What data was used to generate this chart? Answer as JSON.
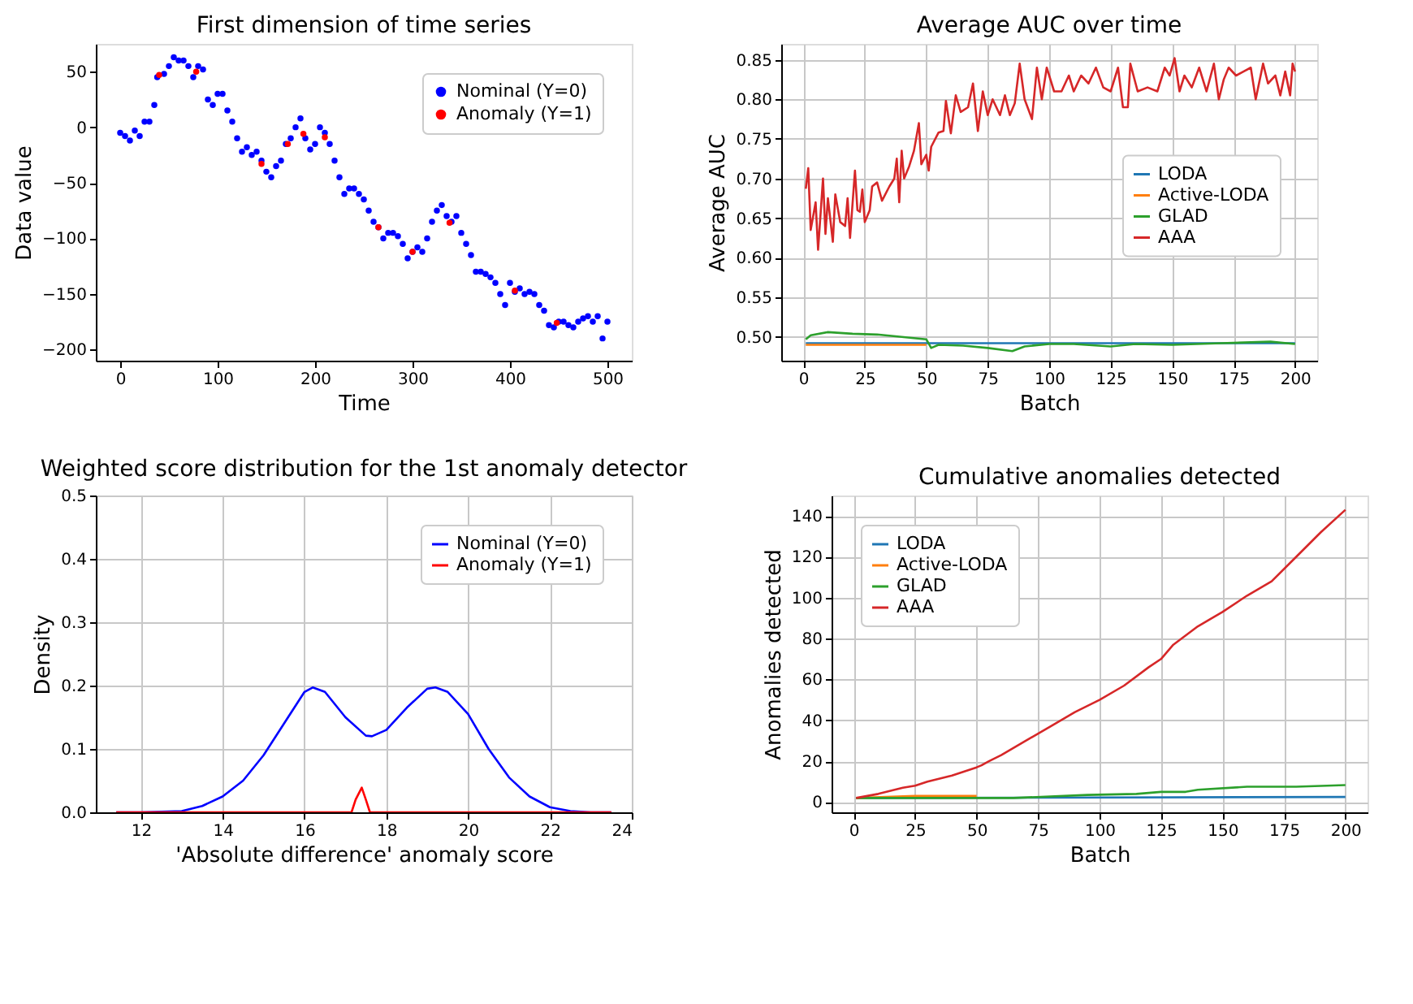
{
  "chart_data": [
    {
      "type": "scatter",
      "title": "First dimension of time series",
      "xlabel": "Time",
      "ylabel": "Data value",
      "xlim": [
        -25,
        525
      ],
      "ylim": [
        -210,
        75
      ],
      "xticks": [
        0,
        100,
        200,
        300,
        400,
        500
      ],
      "yticks": [
        -200,
        -150,
        -100,
        -50,
        0,
        50
      ],
      "grid": false,
      "legend": "top right",
      "marker": "circle",
      "series": [
        {
          "name": "Nominal (Y=0)",
          "color": "#0000ff",
          "x": [
            0,
            5,
            10,
            15,
            20,
            25,
            30,
            35,
            38,
            45,
            50,
            55,
            60,
            65,
            70,
            75,
            80,
            85,
            90,
            95,
            100,
            105,
            110,
            115,
            120,
            125,
            130,
            135,
            140,
            145,
            150,
            155,
            160,
            165,
            170,
            175,
            180,
            185,
            190,
            195,
            200,
            205,
            210,
            215,
            220,
            225,
            230,
            235,
            240,
            245,
            250,
            255,
            260,
            265,
            270,
            275,
            280,
            285,
            290,
            295,
            300,
            305,
            310,
            315,
            320,
            325,
            330,
            335,
            340,
            345,
            350,
            355,
            360,
            365,
            370,
            375,
            380,
            385,
            390,
            395,
            400,
            405,
            410,
            415,
            420,
            425,
            430,
            435,
            440,
            445,
            450,
            455,
            460,
            465,
            470,
            475,
            480,
            485,
            490,
            495,
            500
          ],
          "values": [
            -5,
            -8,
            -12,
            -3,
            -8,
            5,
            5,
            20,
            45,
            48,
            55,
            63,
            60,
            60,
            55,
            45,
            55,
            52,
            25,
            20,
            30,
            30,
            15,
            5,
            -10,
            -22,
            -18,
            -25,
            -22,
            -30,
            -40,
            -45,
            -35,
            -30,
            -15,
            -10,
            0,
            8,
            -10,
            -20,
            -15,
            0,
            -5,
            -15,
            -30,
            -45,
            -60,
            -55,
            -55,
            -60,
            -65,
            -75,
            -85,
            -90,
            -100,
            -95,
            -95,
            -98,
            -105,
            -118,
            -112,
            -108,
            -112,
            -100,
            -85,
            -75,
            -70,
            -80,
            -85,
            -80,
            -95,
            -105,
            -115,
            -130,
            -130,
            -132,
            -135,
            -140,
            -150,
            -160,
            -140,
            -148,
            -145,
            -150,
            -148,
            -150,
            -160,
            -165,
            -178,
            -180,
            -175,
            -175,
            -178,
            -180,
            -175,
            -172,
            -170,
            -175,
            -170,
            -190,
            -175
          ]
        },
        {
          "name": "Anomaly (Y=1)",
          "color": "#ff0000",
          "x": [
            40,
            78,
            145,
            172,
            188,
            210,
            265,
            300,
            338,
            405,
            448
          ],
          "values": [
            47,
            50,
            -33,
            -15,
            -6,
            -9,
            -90,
            -112,
            -86,
            -147,
            -176
          ]
        }
      ]
    },
    {
      "type": "line",
      "title": "Average AUC over time",
      "xlabel": "Batch",
      "ylabel": "Average AUC",
      "xlim": [
        -9,
        209
      ],
      "ylim": [
        0.47,
        0.87
      ],
      "xticks": [
        0,
        25,
        50,
        75,
        100,
        125,
        150,
        175,
        200
      ],
      "yticks": [
        {
          "value": 0.5,
          "label": "0.50"
        },
        {
          "value": 0.55,
          "label": "0.55"
        },
        {
          "value": 0.6,
          "label": "0.60"
        },
        {
          "value": 0.65,
          "label": "0.65"
        },
        {
          "value": 0.7,
          "label": "0.70"
        },
        {
          "value": 0.75,
          "label": "0.75"
        },
        {
          "value": 0.8,
          "label": "0.80"
        },
        {
          "value": 0.85,
          "label": "0.85"
        }
      ],
      "grid": true,
      "legend": "right",
      "line_style": "solid",
      "series": [
        {
          "name": "LODA",
          "color": "#1f77b4",
          "x": [
            1,
            200
          ],
          "values": [
            0.492,
            0.492
          ]
        },
        {
          "name": "Active-LODA",
          "color": "#ff7f0e",
          "x": [
            1,
            50
          ],
          "values": [
            0.49,
            0.49
          ]
        },
        {
          "name": "GLAD",
          "color": "#2ca02c",
          "x": [
            1,
            3,
            10,
            20,
            30,
            40,
            50,
            52,
            55,
            65,
            75,
            85,
            90,
            100,
            110,
            125,
            135,
            150,
            170,
            190,
            200
          ],
          "values": [
            0.497,
            0.502,
            0.506,
            0.504,
            0.503,
            0.5,
            0.497,
            0.486,
            0.49,
            0.489,
            0.486,
            0.482,
            0.488,
            0.491,
            0.491,
            0.488,
            0.491,
            0.49,
            0.492,
            0.494,
            0.491
          ]
        },
        {
          "name": "AAA",
          "color": "#d62728",
          "x": [
            1,
            2,
            3,
            5,
            6,
            8,
            9,
            10,
            12,
            13,
            15,
            17,
            18,
            19,
            21,
            22,
            23,
            24,
            25,
            27,
            28,
            30,
            32,
            35,
            37,
            38,
            39,
            40,
            41,
            43,
            45,
            47,
            48,
            50,
            51,
            52,
            55,
            57,
            58,
            60,
            62,
            64,
            67,
            69,
            71,
            73,
            75,
            77,
            80,
            82,
            84,
            86,
            88,
            90,
            93,
            95,
            97,
            99,
            102,
            105,
            108,
            110,
            113,
            116,
            119,
            122,
            125,
            128,
            130,
            132,
            133,
            136,
            140,
            144,
            147,
            149,
            151,
            153,
            155,
            158,
            161,
            164,
            167,
            169,
            171,
            173,
            176,
            179,
            182,
            184,
            187,
            189,
            192,
            194,
            196,
            198,
            199,
            200
          ],
          "values": [
            0.687,
            0.713,
            0.635,
            0.67,
            0.61,
            0.7,
            0.63,
            0.675,
            0.62,
            0.68,
            0.645,
            0.64,
            0.675,
            0.625,
            0.71,
            0.66,
            0.658,
            0.686,
            0.645,
            0.66,
            0.69,
            0.695,
            0.672,
            0.69,
            0.7,
            0.725,
            0.67,
            0.735,
            0.7,
            0.715,
            0.735,
            0.77,
            0.718,
            0.73,
            0.71,
            0.74,
            0.758,
            0.76,
            0.798,
            0.757,
            0.805,
            0.784,
            0.79,
            0.82,
            0.76,
            0.81,
            0.78,
            0.8,
            0.78,
            0.805,
            0.78,
            0.795,
            0.845,
            0.8,
            0.775,
            0.84,
            0.8,
            0.84,
            0.81,
            0.81,
            0.83,
            0.81,
            0.83,
            0.82,
            0.84,
            0.815,
            0.81,
            0.84,
            0.79,
            0.79,
            0.845,
            0.81,
            0.815,
            0.81,
            0.84,
            0.83,
            0.852,
            0.81,
            0.83,
            0.815,
            0.84,
            0.81,
            0.845,
            0.8,
            0.825,
            0.84,
            0.83,
            0.835,
            0.84,
            0.8,
            0.845,
            0.82,
            0.83,
            0.805,
            0.835,
            0.805,
            0.845,
            0.835
          ]
        }
      ]
    },
    {
      "type": "line",
      "title": "Weighted score distribution for the 1st anomaly detector",
      "xlabel": "'Absolute difference' anomaly score",
      "ylabel": "Density",
      "xlim": [
        10.9,
        24
      ],
      "ylim": [
        0,
        0.5
      ],
      "xticks": [
        12,
        14,
        16,
        18,
        20,
        22,
        24
      ],
      "yticks": [
        {
          "value": 0,
          "label": "0.0"
        },
        0.1,
        0.2,
        0.3,
        0.4,
        0.5
      ],
      "grid": true,
      "legend": "top right",
      "line_style": "solid",
      "series": [
        {
          "name": "Nominal (Y=0)",
          "color": "#0000ff",
          "x": [
            11.4,
            12,
            13,
            13.5,
            14,
            14.5,
            15,
            15.5,
            16,
            16.2,
            16.5,
            17,
            17.5,
            17.65,
            18,
            18.5,
            19,
            19.2,
            19.5,
            20,
            20.5,
            21,
            21.5,
            22,
            22.5,
            23,
            23.5
          ],
          "values": [
            0,
            0,
            0.002,
            0.01,
            0.025,
            0.05,
            0.09,
            0.14,
            0.19,
            0.197,
            0.19,
            0.15,
            0.121,
            0.12,
            0.13,
            0.165,
            0.195,
            0.197,
            0.19,
            0.155,
            0.1,
            0.055,
            0.025,
            0.008,
            0.002,
            0,
            0
          ]
        },
        {
          "name": "Anomaly (Y=1)",
          "color": "#ff0000",
          "x": [
            11.4,
            17.15,
            17.25,
            17.4,
            17.5,
            17.6,
            23.5
          ],
          "values": [
            0,
            0,
            0.02,
            0.039,
            0.02,
            0,
            0
          ]
        }
      ]
    },
    {
      "type": "line",
      "title": "Cumulative anomalies detected",
      "xlabel": "Batch",
      "ylabel": "Anomalies detected",
      "xlim": [
        -9,
        209
      ],
      "ylim": [
        -5,
        150
      ],
      "xticks": [
        0,
        25,
        50,
        75,
        100,
        125,
        150,
        175,
        200
      ],
      "yticks": [
        0,
        20,
        40,
        60,
        80,
        100,
        120,
        140
      ],
      "grid": true,
      "legend": "top left",
      "line_style": "solid",
      "series": [
        {
          "name": "LODA",
          "color": "#1f77b4",
          "x": [
            1,
            200
          ],
          "values": [
            2,
            2.5
          ]
        },
        {
          "name": "Active-LODA",
          "color": "#ff7f0e",
          "x": [
            1,
            25,
            50
          ],
          "values": [
            2,
            3,
            3
          ]
        },
        {
          "name": "GLAD",
          "color": "#2ca02c",
          "x": [
            1,
            65,
            95,
            115,
            125,
            135,
            140,
            160,
            180,
            200
          ],
          "values": [
            2,
            2,
            3.5,
            4,
            5,
            5,
            6,
            7.5,
            7.5,
            8.3
          ]
        },
        {
          "name": "AAA",
          "color": "#d62728",
          "x": [
            1,
            10,
            20,
            25,
            30,
            40,
            50,
            52,
            55,
            60,
            70,
            80,
            90,
            100,
            110,
            120,
            125,
            130,
            140,
            150,
            160,
            170,
            180,
            190,
            200
          ],
          "values": [
            2,
            4,
            7,
            8,
            10,
            13,
            17,
            18,
            20,
            23,
            30,
            37,
            44,
            50,
            57,
            66,
            70,
            77,
            86,
            93,
            101,
            108,
            120,
            132,
            143
          ]
        }
      ]
    }
  ]
}
